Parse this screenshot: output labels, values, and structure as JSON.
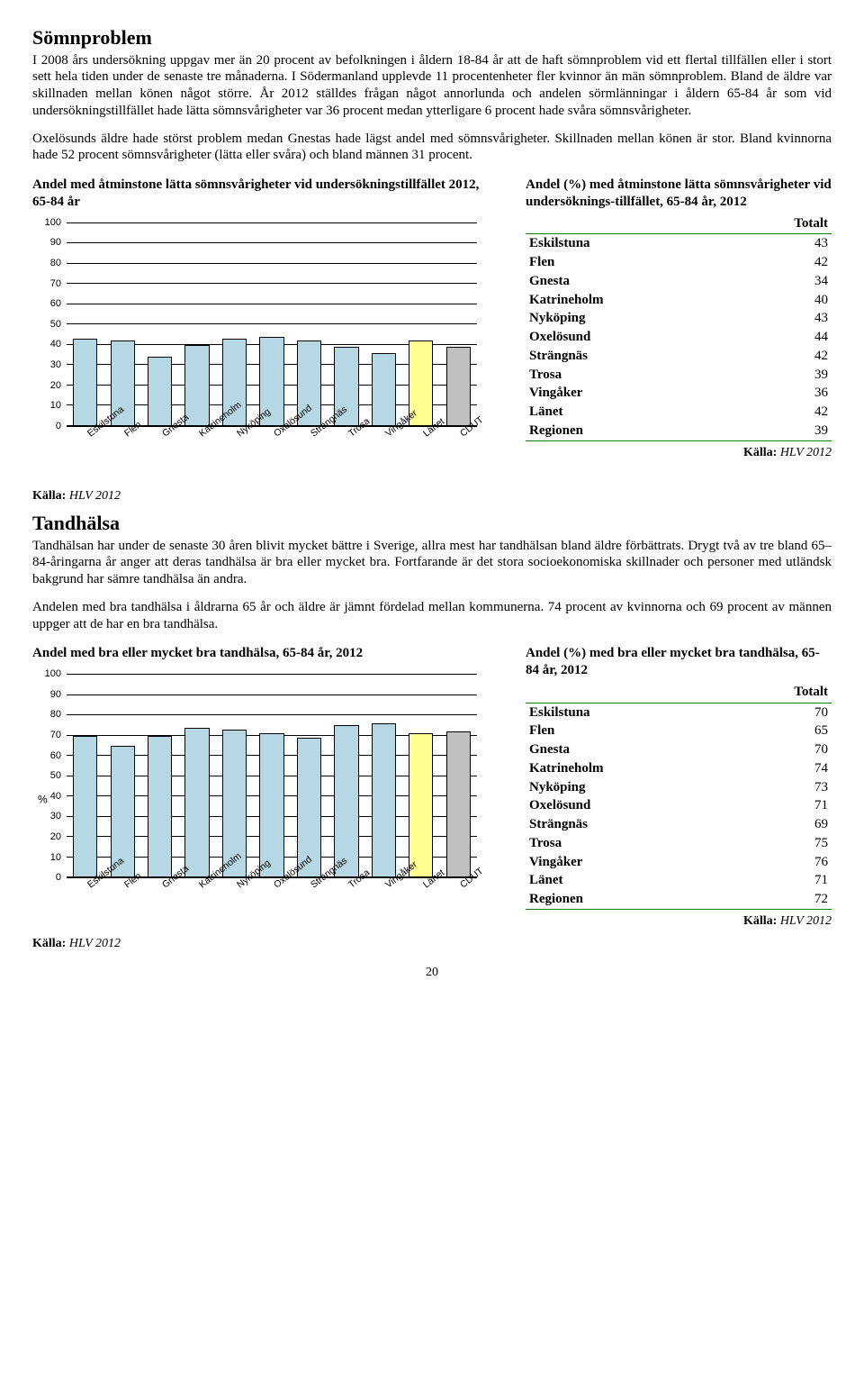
{
  "section1": {
    "heading": "Sömnproblem",
    "para1": "I 2008 års undersökning uppgav mer än 20 procent av befolkningen i åldern 18-84 år att de haft sömnproblem vid ett flertal tillfällen eller i stort sett hela tiden under de senaste tre månaderna. I Södermanland upplevde 11 procentenheter fler kvinnor än män sömnproblem. Bland de äldre var skillnaden mellan könen något större. År 2012 ställdes frågan något annorlunda och andelen sörmlänningar i åldern 65-84 år som vid undersökningstillfället hade lätta sömnsvårigheter var 36 procent medan ytterligare 6 procent hade svåra sömnsvårigheter.",
    "para2": "Oxelösunds äldre hade störst problem medan Gnestas hade lägst andel med sömnsvårigheter. Skillnaden mellan könen är stor. Bland kvinnorna hade 52 procent sömnsvårigheter (lätta eller svåra) och bland männen 31 procent.",
    "chart_title": "Andel med åtminstone lätta sömnsvårigheter vid undersökningstillfället 2012, 65-84 år",
    "table_title": "Andel (%) med åtminstone lätta sömnsvårigheter vid undersöknings-tillfället, 65-84 år, 2012"
  },
  "section2": {
    "heading": "Tandhälsa",
    "para1": "Tandhälsan har under de senaste 30 åren blivit mycket bättre i Sverige, allra mest har tandhälsan bland äldre förbättrats. Drygt två av tre bland 65–84-åringarna år anger att deras tandhälsa är bra eller mycket bra. Fortfarande är det stora socioekonomiska skillnader och personer med utländsk bakgrund har sämre tandhälsa än andra.",
    "para2": "Andelen med bra tandhälsa i åldrarna 65 år och äldre är jämnt fördelad mellan kommunerna. 74 procent av kvinnorna och 69 procent av männen uppger att de har en bra tandhälsa.",
    "chart_title": "Andel med bra eller mycket bra tandhälsa, 65-84 år, 2012",
    "table_title": "Andel (%) med bra eller mycket bra tandhälsa, 65-84 år, 2012"
  },
  "categories": [
    "Eskilstuna",
    "Flen",
    "Gnesta",
    "Katrineholm",
    "Nyköping",
    "Oxelösund",
    "Strängnäs",
    "Trosa",
    "Vingåker",
    "Länet",
    "CDUT"
  ],
  "chart_common": {
    "ylim": [
      0,
      100
    ],
    "ytick_step": 10,
    "grid_color": "#000000",
    "bar_border": "#000000",
    "font": "Arial"
  },
  "chart1": {
    "type": "bar",
    "values": [
      43,
      42,
      34,
      40,
      43,
      44,
      42,
      39,
      36,
      42,
      39
    ],
    "bar_colors": [
      "#b6d7e4",
      "#b6d7e4",
      "#b6d7e4",
      "#b6d7e4",
      "#b6d7e4",
      "#b6d7e4",
      "#b6d7e4",
      "#b6d7e4",
      "#b6d7e4",
      "#ffff8f",
      "#c0c0c0"
    ],
    "show_pct_axis_label": false
  },
  "chart2": {
    "type": "bar",
    "values": [
      70,
      65,
      70,
      74,
      73,
      71,
      69,
      75,
      76,
      71,
      72
    ],
    "bar_colors": [
      "#b6d7e4",
      "#b6d7e4",
      "#b6d7e4",
      "#b6d7e4",
      "#b6d7e4",
      "#b6d7e4",
      "#b6d7e4",
      "#b6d7e4",
      "#b6d7e4",
      "#ffff8f",
      "#c0c0c0"
    ],
    "show_pct_axis_label": true,
    "pct_axis_label": "%"
  },
  "table_header": "Totalt",
  "table1_rows": [
    [
      "Eskilstuna",
      "43"
    ],
    [
      "Flen",
      "42"
    ],
    [
      "Gnesta",
      "34"
    ],
    [
      "Katrineholm",
      "40"
    ],
    [
      "Nyköping",
      "43"
    ],
    [
      "Oxelösund",
      "44"
    ],
    [
      "Strängnäs",
      "42"
    ],
    [
      "Trosa",
      "39"
    ],
    [
      "Vingåker",
      "36"
    ],
    [
      "Länet",
      "42"
    ],
    [
      "Regionen",
      "39"
    ]
  ],
  "table2_rows": [
    [
      "Eskilstuna",
      "70"
    ],
    [
      "Flen",
      "65"
    ],
    [
      "Gnesta",
      "70"
    ],
    [
      "Katrineholm",
      "74"
    ],
    [
      "Nyköping",
      "73"
    ],
    [
      "Oxelösund",
      "71"
    ],
    [
      "Strängnäs",
      "69"
    ],
    [
      "Trosa",
      "75"
    ],
    [
      "Vingåker",
      "76"
    ],
    [
      "Länet",
      "71"
    ],
    [
      "Regionen",
      "72"
    ]
  ],
  "source_label": "Källa:",
  "source_value": "HLV 2012",
  "page_number": "20"
}
